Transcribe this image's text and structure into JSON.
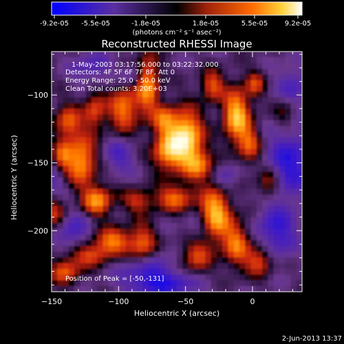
{
  "colorbar": {
    "tick_labels": [
      "-9.2e-05",
      "-5.5e-05",
      "-1.8e-05",
      "1.8e-05",
      "5.5e-05",
      "9.2e-05"
    ],
    "units": "(photons cm⁻² s⁻¹ asec⁻²)"
  },
  "plot": {
    "title": "Reconstructed RHESSI Image",
    "info_line1": "1-May-2003 03:17:56.000 to 03:22:32.000",
    "info_line2": "Detectors: 4F 5F 6F 7F 8F, Att 0",
    "info_line3": "Energy Range: 25.0 - 50.0 keV",
    "info_line4": "Clean     Total counts: 3.20E+03",
    "peak_label": "Position of Peak = [-50,-131]"
  },
  "chart_data": {
    "type": "heatmap",
    "title": "Reconstructed RHESSI Image",
    "xlabel": "Heliocentric X (arcsec)",
    "ylabel": "Heliocentric Y (arcsec)",
    "xlim": [
      -150,
      37
    ],
    "ylim": [
      -245,
      -68
    ],
    "x_ticks": [
      -150,
      -100,
      -50,
      0
    ],
    "y_ticks": [
      -100,
      -150,
      -200
    ],
    "colorscale_range": [
      -9.2e-05,
      9.2e-05
    ],
    "peak": [
      -50,
      -131
    ]
  },
  "footer": {
    "date": "2-Jun-2013 13:37"
  }
}
